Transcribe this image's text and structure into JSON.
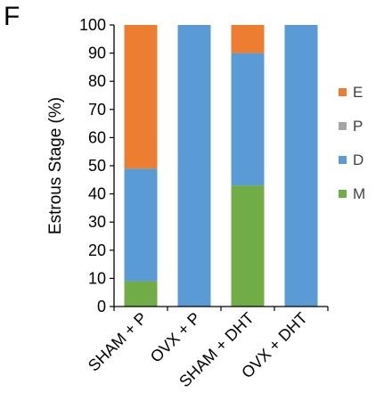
{
  "panel_label": "F",
  "colors": {
    "M": "#70ad47",
    "D": "#5b9bd5",
    "P": "#a5a5a5",
    "E": "#ed7d31",
    "axis": "#000000"
  },
  "chart_data": {
    "type": "bar",
    "stacked": true,
    "categories": [
      "SHAM + P",
      "OVX + P",
      "SHAM + DHT",
      "OVX + DHT"
    ],
    "series": [
      {
        "name": "M",
        "values": [
          9,
          0,
          43,
          0
        ]
      },
      {
        "name": "D",
        "values": [
          40,
          100,
          47,
          100
        ]
      },
      {
        "name": "P",
        "values": [
          0,
          0,
          0,
          0
        ]
      },
      {
        "name": "E",
        "values": [
          51,
          0,
          10,
          0
        ]
      }
    ],
    "title": "",
    "xlabel": "",
    "ylabel": "Estrous Stage (%)",
    "ylim": [
      0,
      100
    ],
    "yticks": [
      0,
      10,
      20,
      30,
      40,
      50,
      60,
      70,
      80,
      90,
      100
    ],
    "legend": {
      "placement": "right",
      "order": [
        "E",
        "P",
        "D",
        "M"
      ]
    },
    "grid": false
  }
}
